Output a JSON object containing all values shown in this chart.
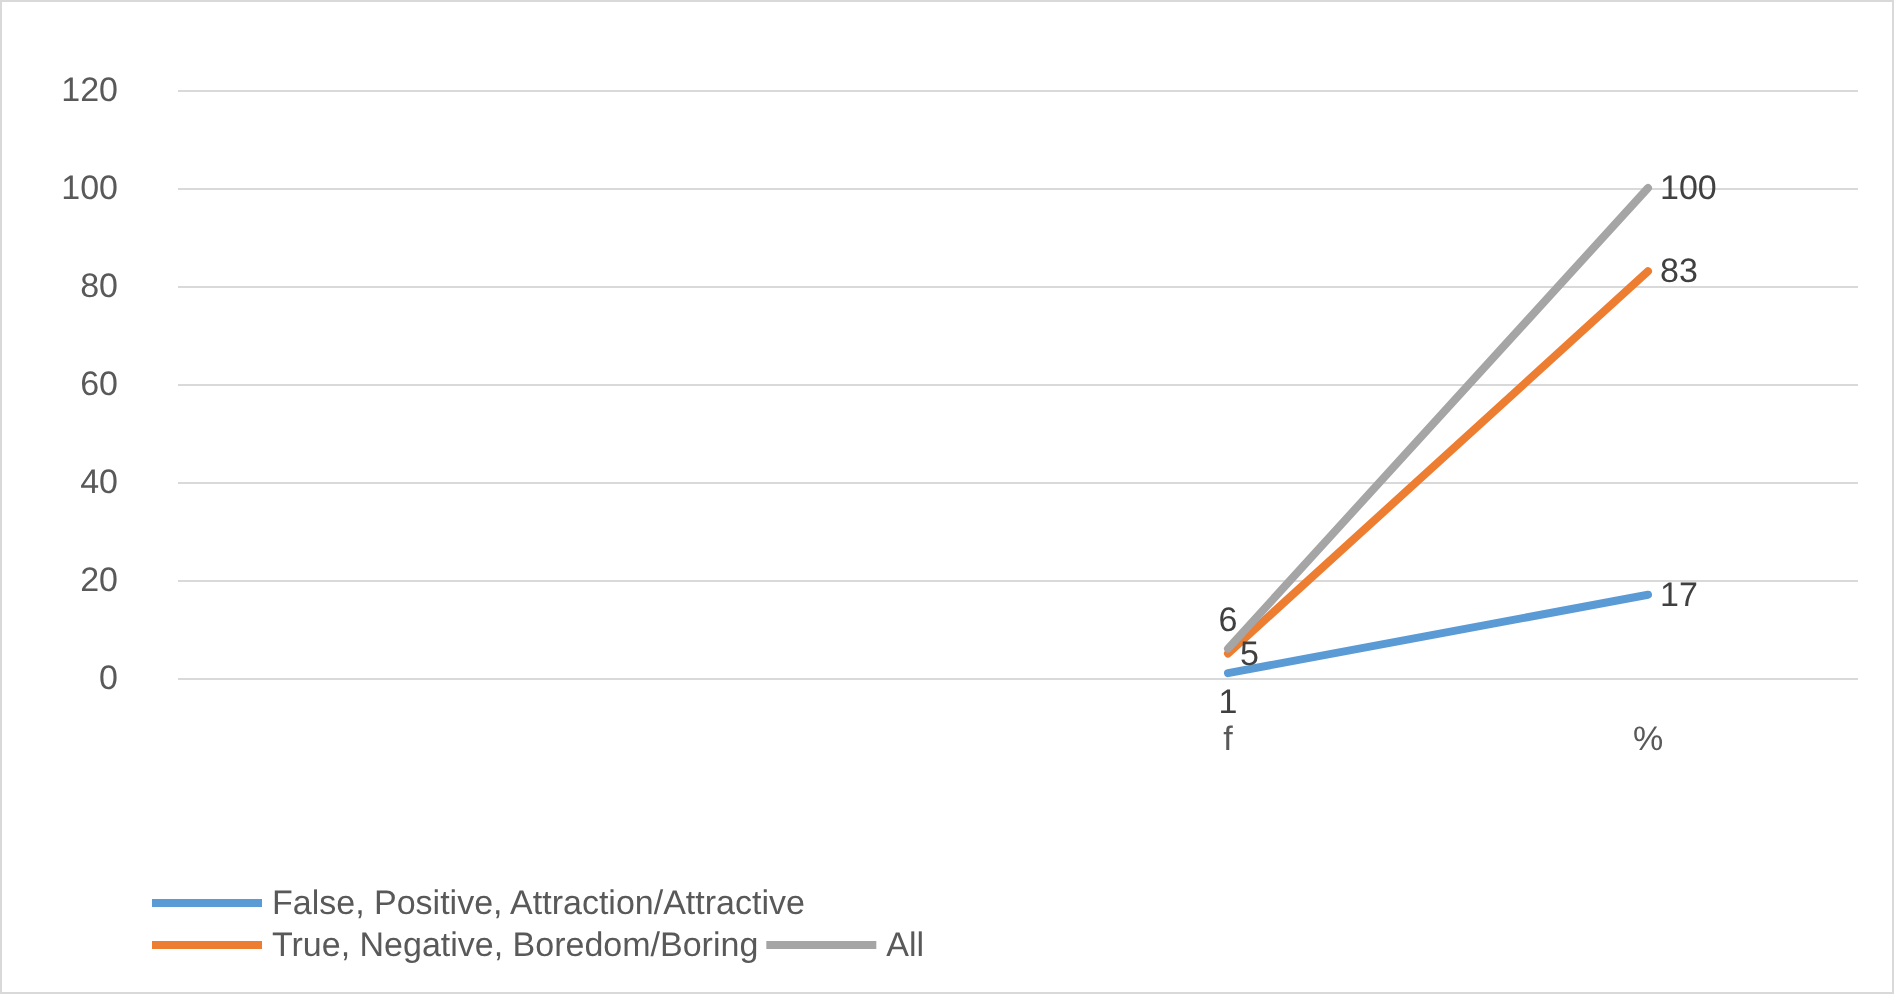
{
  "chart_data": {
    "type": "line",
    "categories": [
      null,
      null,
      "f",
      "%"
    ],
    "series": [
      {
        "name": "False, Positive, Attraction/Attractive",
        "color": "#5b9bd5",
        "values": [
          null,
          null,
          1,
          17
        ]
      },
      {
        "name": "True, Negative, Boredom/Boring",
        "color": "#ed7d31",
        "values": [
          null,
          null,
          5,
          83
        ]
      },
      {
        "name": "All",
        "color": "#a5a5a5",
        "values": [
          null,
          null,
          6,
          100
        ]
      }
    ],
    "ylim": [
      0,
      120
    ],
    "yticks": [
      0,
      20,
      40,
      60,
      80,
      100,
      120
    ],
    "grid": "y",
    "legend": "bottom",
    "marker": "none",
    "line_style": "solid",
    "data_labels": true
  }
}
